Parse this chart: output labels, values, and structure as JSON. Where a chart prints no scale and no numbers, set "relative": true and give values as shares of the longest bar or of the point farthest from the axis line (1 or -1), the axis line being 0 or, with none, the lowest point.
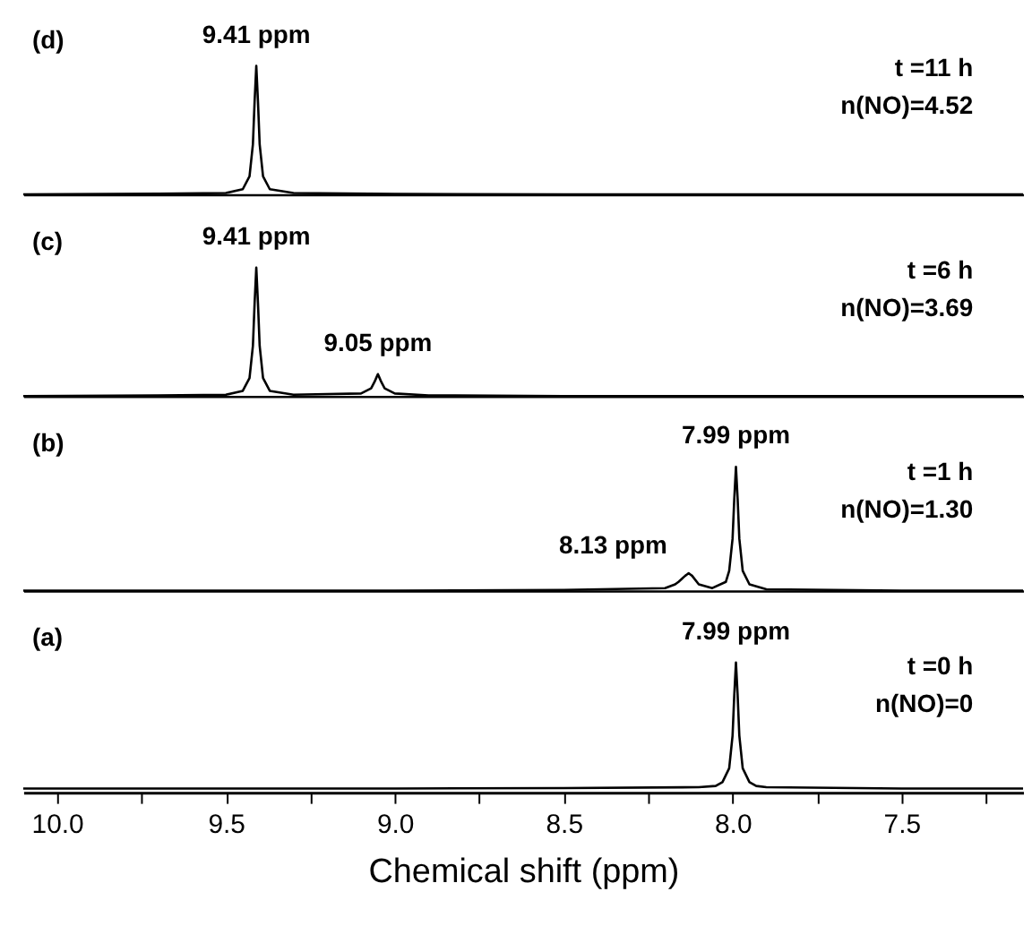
{
  "chart_data": [
    {
      "type": "line",
      "relative": true,
      "xlim": [
        10.1,
        7.14
      ],
      "tick_labels": false,
      "series": [
        {
          "color": "#000000",
          "x": [
            10.1,
            9.7,
            9.5,
            9.45,
            9.43,
            9.42,
            9.415,
            9.41,
            9.405,
            9.4,
            9.39,
            9.37,
            9.3,
            9.0,
            8.5,
            8.0,
            7.5,
            7.14
          ],
          "values": [
            0,
            0.005,
            0.01,
            0.04,
            0.14,
            0.39,
            0.72,
            1,
            0.72,
            0.39,
            0.14,
            0.04,
            0.01,
            0.003,
            0,
            0,
            0,
            0
          ]
        }
      ],
      "annotations": [
        {
          "text": "9.41 ppm",
          "x": 9.41,
          "y": 1
        },
        "(d)",
        "t =11 h",
        "n(NO)=4.52"
      ]
    },
    {
      "type": "line",
      "relative": true,
      "xlim": [
        10.1,
        7.14
      ],
      "tick_labels": false,
      "series": [
        {
          "color": "#000000",
          "x": [
            10.1,
            9.7,
            9.5,
            9.45,
            9.43,
            9.42,
            9.415,
            9.41,
            9.405,
            9.4,
            9.39,
            9.37,
            9.3,
            9.1,
            9.07,
            9.06,
            9.055,
            9.05,
            9.045,
            9.04,
            9.03,
            9.0,
            8.9,
            8.5,
            8.0,
            7.5,
            7.14
          ],
          "values": [
            0,
            0.005,
            0.01,
            0.04,
            0.14,
            0.39,
            0.72,
            1,
            0.72,
            0.39,
            0.14,
            0.04,
            0.01,
            0.02,
            0.06,
            0.11,
            0.14,
            0.17,
            0.14,
            0.11,
            0.06,
            0.02,
            0.005,
            0,
            0,
            0,
            0
          ]
        }
      ],
      "annotations": [
        {
          "text": "9.41 ppm",
          "x": 9.41,
          "y": 1
        },
        {
          "text": "9.05 ppm",
          "x": 9.05,
          "y": 0.17
        },
        "(c)",
        "t =6 h",
        "n(NO)=3.69"
      ]
    },
    {
      "type": "line",
      "relative": true,
      "xlim": [
        10.1,
        7.14
      ],
      "tick_labels": false,
      "series": [
        {
          "color": "#000000",
          "x": [
            10.1,
            9.5,
            9.0,
            8.5,
            8.2,
            8.17,
            8.16,
            8.14,
            8.135,
            8.13,
            8.125,
            8.12,
            8.1,
            8.06,
            8.02,
            8.01,
            8.0,
            7.995,
            7.99,
            7.985,
            7.98,
            7.97,
            7.95,
            7.9,
            7.5,
            7.14
          ],
          "values": [
            0,
            0,
            0,
            0.005,
            0.02,
            0.05,
            0.07,
            0.12,
            0.13,
            0.14,
            0.13,
            0.12,
            0.05,
            0.02,
            0.07,
            0.16,
            0.42,
            0.74,
            1,
            0.74,
            0.42,
            0.16,
            0.05,
            0.01,
            0,
            0
          ]
        }
      ],
      "annotations": [
        {
          "text": "7.99 ppm",
          "x": 7.99,
          "y": 1
        },
        {
          "text": "8.13 ppm",
          "x": 8.13,
          "y": 0.14
        },
        "(b)",
        "t =1 h",
        "n(NO)=1.30"
      ]
    },
    {
      "type": "line",
      "relative": true,
      "xlim": [
        10.1,
        7.14
      ],
      "tick_labels": "x",
      "xlabel": "Chemical shift (ppm)",
      "xticks": [
        {
          "value": 10,
          "label": "10.0"
        },
        {
          "value": 9.75,
          "label": null
        },
        9.5,
        {
          "value": 9.25,
          "label": null
        },
        {
          "value": 9,
          "label": "9.0"
        },
        {
          "value": 8.75,
          "label": null
        },
        8.5,
        {
          "value": 8.25,
          "label": null
        },
        {
          "value": 8,
          "label": "8.0"
        },
        {
          "value": 7.75,
          "label": null
        },
        7.5,
        {
          "value": 7.25,
          "label": null
        }
      ],
      "series": [
        {
          "color": "#000000",
          "x": [
            10.1,
            9.5,
            9.0,
            8.5,
            8.1,
            8.05,
            8.03,
            8.01,
            8.0,
            7.995,
            7.99,
            7.985,
            7.98,
            7.97,
            7.95,
            7.93,
            7.9,
            7.5,
            7.14
          ],
          "values": [
            0,
            0,
            0,
            0.003,
            0.01,
            0.02,
            0.05,
            0.16,
            0.42,
            0.74,
            1,
            0.74,
            0.42,
            0.16,
            0.05,
            0.02,
            0.01,
            0,
            0
          ]
        }
      ],
      "annotations": [
        {
          "text": "7.99 ppm",
          "x": 7.99,
          "y": 1
        },
        "(a)",
        "t =0 h",
        "n(NO)=0"
      ]
    }
  ]
}
